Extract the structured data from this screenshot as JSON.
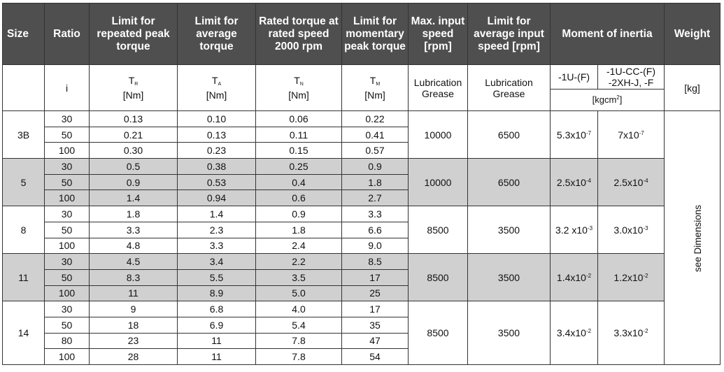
{
  "headers": {
    "size": "Size",
    "ratio": "Ratio",
    "repeated_peak": "Limit for repeated peak torque",
    "average": "Limit for average torque",
    "rated": "Rated torque at rated speed 2000 rpm",
    "momentary": "Limit for momentary peak torque",
    "max_input": "Max. input speed [rpm]",
    "avg_input": "Limit for average input speed [rpm]",
    "inertia": "Moment of inertia",
    "weight": "Weight"
  },
  "subheaders": {
    "ratio_symbol": "i",
    "tr": {
      "sym": "T",
      "sub": "R",
      "unit": "[Nm]"
    },
    "ta": {
      "sym": "T",
      "sub": "A",
      "unit": "[Nm]"
    },
    "tn": {
      "sym": "T",
      "sub": "N",
      "unit": "[Nm]"
    },
    "tm": {
      "sym": "T",
      "sub": "M",
      "unit": "[Nm]"
    },
    "lubrication_1": "Lubrication Grease",
    "lubrication_2": "Lubrication Grease",
    "inertia_col1": "-1U-(F)",
    "inertia_col2_line1": "-1U-CC-(F)",
    "inertia_col2_line2": "-2XH-J, -F",
    "inertia_unit": "[kgcm",
    "inertia_unit_sup": "2",
    "inertia_unit_end": "]",
    "weight_unit": "[kg]"
  },
  "weight_note": "see Dimensions",
  "groups": [
    {
      "size": "3B",
      "max_speed": "10000",
      "avg_speed": "6500",
      "inertia1": {
        "mant": "5.3x10",
        "exp": "-7"
      },
      "inertia2": {
        "mant": "7x10",
        "exp": "-7"
      },
      "rows": [
        {
          "ratio": "30",
          "tr": "0.13",
          "ta": "0.10",
          "tn": "0.06",
          "tm": "0.22"
        },
        {
          "ratio": "50",
          "tr": "0.21",
          "ta": "0.13",
          "tn": "0.11",
          "tm": "0.41"
        },
        {
          "ratio": "100",
          "tr": "0.30",
          "ta": "0.23",
          "tn": "0.15",
          "tm": "0.57"
        }
      ]
    },
    {
      "size": "5",
      "max_speed": "10000",
      "avg_speed": "6500",
      "inertia1": {
        "mant": "2.5x10",
        "exp": "-4"
      },
      "inertia2": {
        "mant": "2.5x10",
        "exp": "-4"
      },
      "rows": [
        {
          "ratio": "30",
          "tr": "0.5",
          "ta": "0.38",
          "tn": "0.25",
          "tm": "0.9"
        },
        {
          "ratio": "50",
          "tr": "0.9",
          "ta": "0.53",
          "tn": "0.4",
          "tm": "1.8"
        },
        {
          "ratio": "100",
          "tr": "1.4",
          "ta": "0.94",
          "tn": "0.6",
          "tm": "2.7"
        }
      ]
    },
    {
      "size": "8",
      "max_speed": "8500",
      "avg_speed": "3500",
      "inertia1": {
        "mant": "3.2 x10",
        "exp": "-3"
      },
      "inertia2": {
        "mant": "3.0x10",
        "exp": "-3"
      },
      "rows": [
        {
          "ratio": "30",
          "tr": "1.8",
          "ta": "1.4",
          "tn": "0.9",
          "tm": "3.3"
        },
        {
          "ratio": "50",
          "tr": "3.3",
          "ta": "2.3",
          "tn": "1.8",
          "tm": "6.6"
        },
        {
          "ratio": "100",
          "tr": "4.8",
          "ta": "3.3",
          "tn": "2.4",
          "tm": "9.0"
        }
      ]
    },
    {
      "size": "11",
      "max_speed": "8500",
      "avg_speed": "3500",
      "inertia1": {
        "mant": "1.4x10",
        "exp": "-2"
      },
      "inertia2": {
        "mant": "1.2x10",
        "exp": "-2"
      },
      "rows": [
        {
          "ratio": "30",
          "tr": "4.5",
          "ta": "3.4",
          "tn": "2.2",
          "tm": "8.5"
        },
        {
          "ratio": "50",
          "tr": "8.3",
          "ta": "5.5",
          "tn": "3.5",
          "tm": "17"
        },
        {
          "ratio": "100",
          "tr": "11",
          "ta": "8.9",
          "tn": "5.0",
          "tm": "25"
        }
      ]
    },
    {
      "size": "14",
      "max_speed": "8500",
      "avg_speed": "3500",
      "inertia1": {
        "mant": "3.4x10",
        "exp": "-2"
      },
      "inertia2": {
        "mant": "3.3x10",
        "exp": "-2"
      },
      "rows": [
        {
          "ratio": "30",
          "tr": "9",
          "ta": "6.8",
          "tn": "4.0",
          "tm": "17"
        },
        {
          "ratio": "50",
          "tr": "18",
          "ta": "6.9",
          "tn": "5.4",
          "tm": "35"
        },
        {
          "ratio": "80",
          "tr": "23",
          "ta": "11",
          "tn": "7.8",
          "tm": "47"
        },
        {
          "ratio": "100",
          "tr": "28",
          "ta": "11",
          "tn": "7.8",
          "tm": "54"
        }
      ]
    }
  ]
}
